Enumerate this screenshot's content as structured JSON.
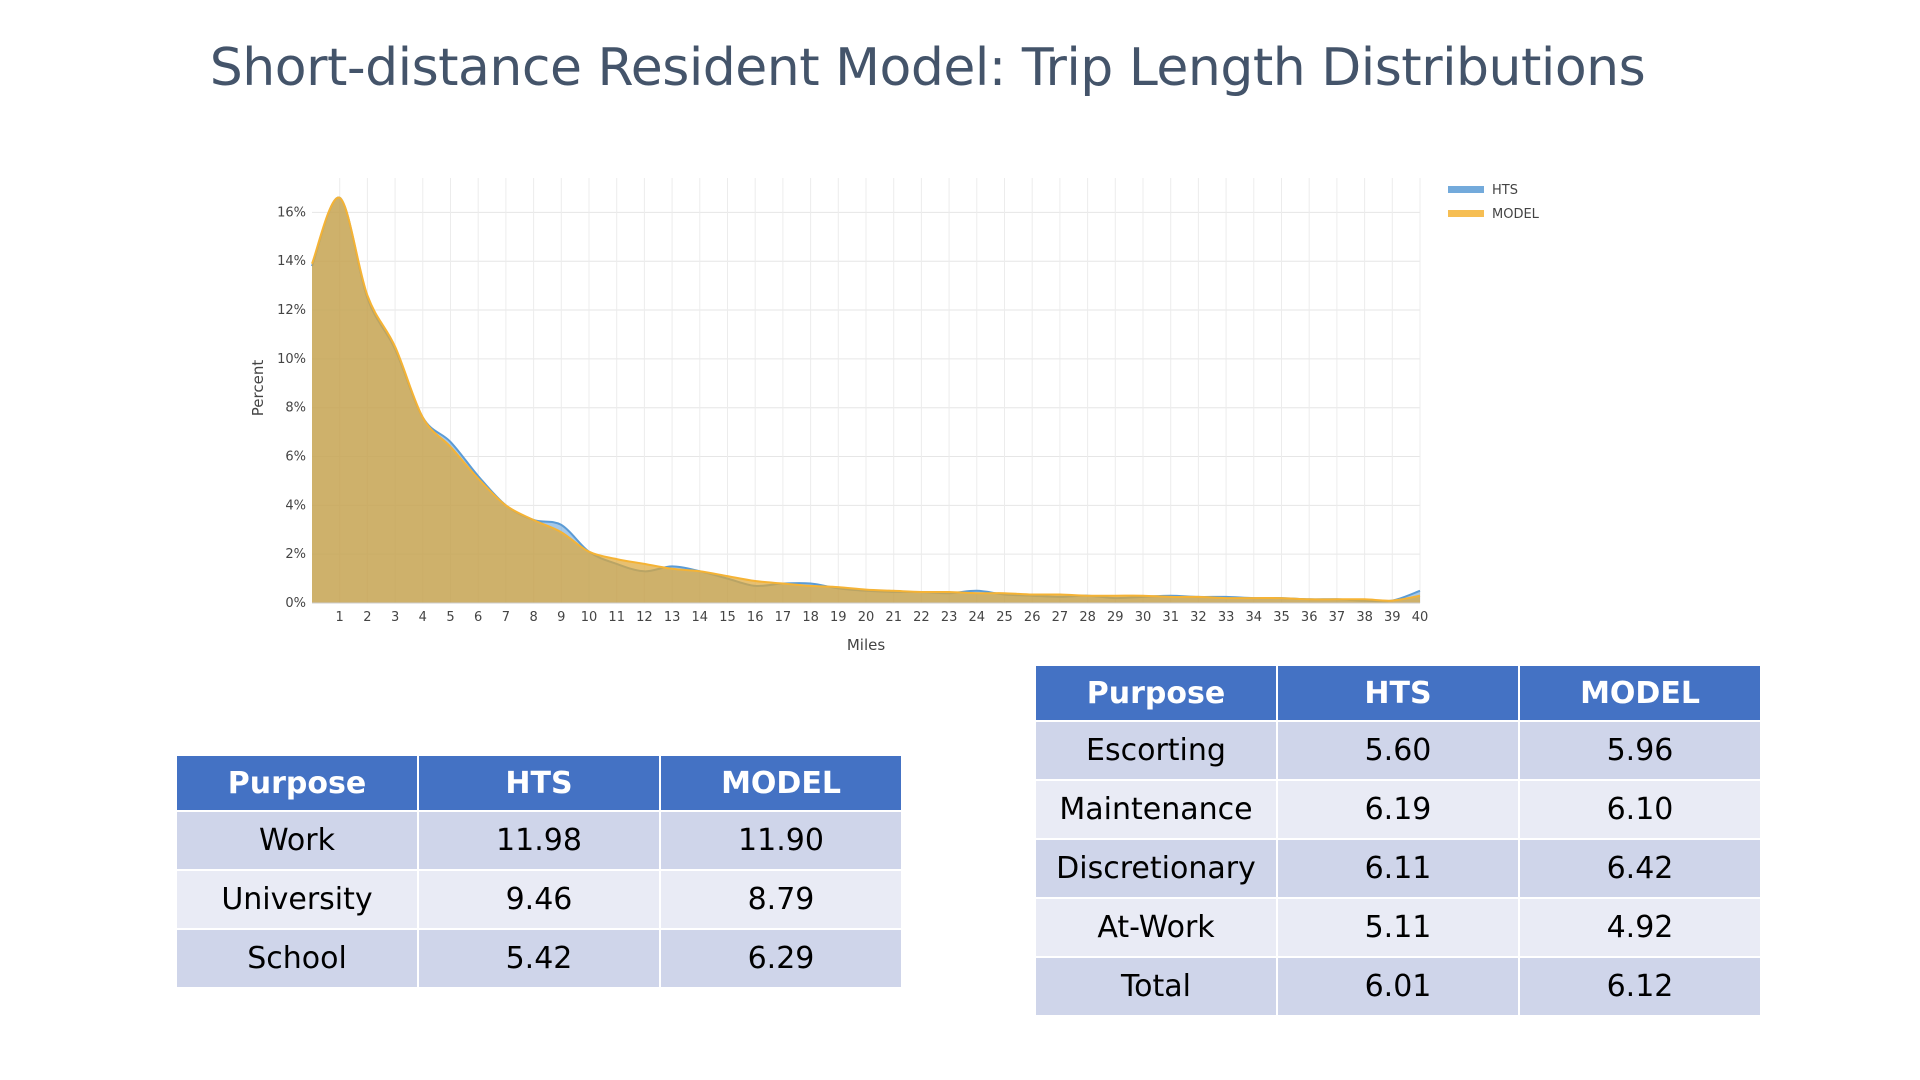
{
  "slide": {
    "title": "Short-distance Resident Model: Trip Length Distributions"
  },
  "chart_data": {
    "type": "area",
    "xlabel": "Miles",
    "ylabel": "Percent",
    "xlim": [
      0,
      40
    ],
    "ylim": [
      0,
      17
    ],
    "y_ticks": [
      "0%",
      "2%",
      "4%",
      "6%",
      "8%",
      "10%",
      "12%",
      "14%",
      "16%"
    ],
    "x_ticks": [
      "1",
      "2",
      "3",
      "4",
      "5",
      "6",
      "7",
      "8",
      "9",
      "10",
      "11",
      "12",
      "13",
      "14",
      "15",
      "16",
      "17",
      "18",
      "19",
      "20",
      "21",
      "22",
      "23",
      "24",
      "25",
      "26",
      "27",
      "28",
      "29",
      "30",
      "31",
      "32",
      "33",
      "34",
      "35",
      "36",
      "37",
      "38",
      "39",
      "40"
    ],
    "grid": true,
    "legend_position": "top-right",
    "x": [
      0,
      1,
      2,
      3,
      4,
      5,
      6,
      7,
      8,
      9,
      10,
      11,
      12,
      13,
      14,
      15,
      16,
      17,
      18,
      19,
      20,
      21,
      22,
      23,
      24,
      25,
      26,
      27,
      28,
      29,
      30,
      31,
      32,
      33,
      34,
      35,
      36,
      37,
      38,
      39,
      40
    ],
    "series": [
      {
        "name": "HTS",
        "color": "#5b9bd5",
        "values": [
          13.8,
          16.6,
          12.5,
          10.4,
          7.6,
          6.6,
          5.2,
          4.0,
          3.4,
          3.2,
          2.1,
          1.6,
          1.3,
          1.5,
          1.3,
          1.0,
          0.7,
          0.8,
          0.8,
          0.6,
          0.5,
          0.45,
          0.45,
          0.4,
          0.5,
          0.35,
          0.3,
          0.25,
          0.3,
          0.2,
          0.25,
          0.3,
          0.25,
          0.25,
          0.2,
          0.2,
          0.15,
          0.15,
          0.1,
          0.1,
          0.5
        ]
      },
      {
        "name": "MODEL",
        "color": "#f5b335",
        "values": [
          13.9,
          16.6,
          12.6,
          10.5,
          7.6,
          6.4,
          5.1,
          4.0,
          3.4,
          2.9,
          2.1,
          1.8,
          1.6,
          1.4,
          1.3,
          1.1,
          0.9,
          0.8,
          0.7,
          0.65,
          0.55,
          0.5,
          0.45,
          0.45,
          0.4,
          0.4,
          0.35,
          0.35,
          0.3,
          0.3,
          0.3,
          0.25,
          0.25,
          0.2,
          0.2,
          0.2,
          0.15,
          0.15,
          0.15,
          0.1,
          0.3
        ]
      }
    ]
  },
  "table_left": {
    "headers": [
      "Purpose",
      "HTS",
      "MODEL"
    ],
    "rows": [
      [
        "Work",
        "11.98",
        "11.90"
      ],
      [
        "University",
        "9.46",
        "8.79"
      ],
      [
        "School",
        "5.42",
        "6.29"
      ]
    ]
  },
  "table_right": {
    "headers": [
      "Purpose",
      "HTS",
      "MODEL"
    ],
    "rows": [
      [
        "Escorting",
        "5.60",
        "5.96"
      ],
      [
        "Maintenance",
        "6.19",
        "6.10"
      ],
      [
        "Discretionary",
        "6.11",
        "6.42"
      ],
      [
        "At-Work",
        "5.11",
        "4.92"
      ],
      [
        "Total",
        "6.01",
        "6.12"
      ]
    ]
  }
}
